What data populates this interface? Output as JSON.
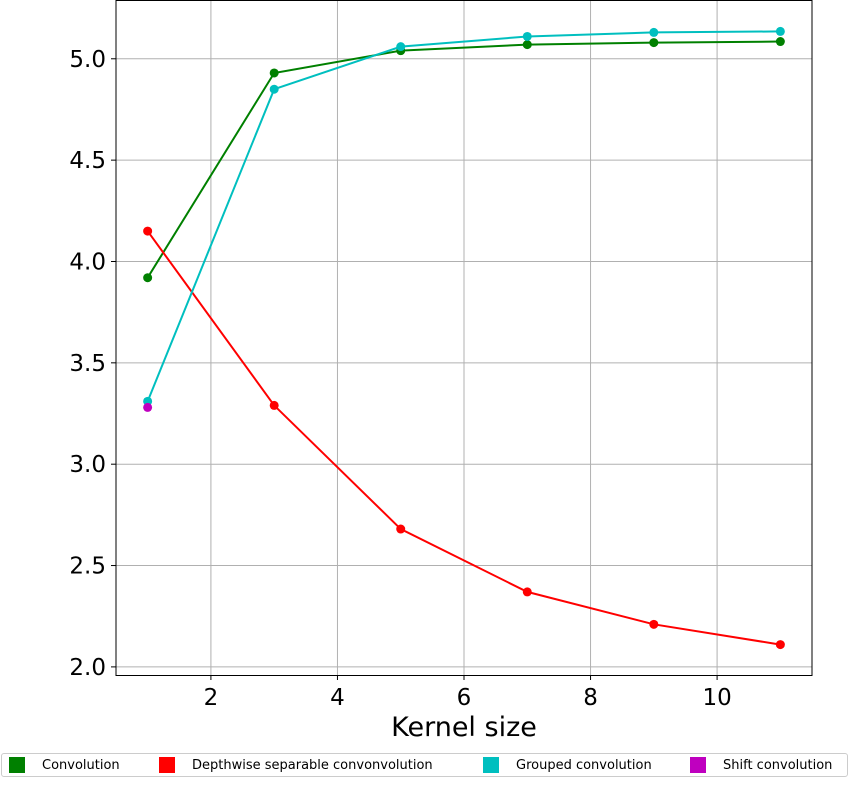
{
  "chart_data": {
    "type": "line",
    "xlabel": "Kernel size",
    "ylabel": "",
    "xlim": [
      0.5,
      11.5
    ],
    "ylim": [
      1.96,
      5.29
    ],
    "xticks": [
      2,
      4,
      6,
      8,
      10
    ],
    "yticks": [
      2.0,
      2.5,
      3.0,
      3.5,
      4.0,
      4.5,
      5.0
    ],
    "xtick_labels": [
      "2",
      "4",
      "6",
      "8",
      "10"
    ],
    "ytick_labels": [
      "2.0",
      "2.5",
      "3.0",
      "3.5",
      "4.0",
      "4.5",
      "5.0"
    ],
    "grid": true,
    "legend_position": "bottom",
    "series": [
      {
        "name": "Convolution",
        "color": "#008000",
        "x": [
          1,
          3,
          5,
          7,
          9,
          11
        ],
        "y": [
          3.92,
          4.93,
          5.04,
          5.07,
          5.08,
          5.085
        ]
      },
      {
        "name": "Depthwise separable convonvolution",
        "color": "#ff0000",
        "x": [
          1,
          3,
          5,
          7,
          9,
          11
        ],
        "y": [
          4.15,
          3.29,
          2.68,
          2.37,
          2.21,
          2.11
        ]
      },
      {
        "name": "Grouped convolution",
        "color": "#00bfbf",
        "x": [
          1,
          3,
          5,
          7,
          9,
          11
        ],
        "y": [
          3.31,
          4.85,
          5.06,
          5.11,
          5.13,
          5.135
        ]
      },
      {
        "name": "Shift convolution",
        "color": "#bf00bf",
        "x": [
          1
        ],
        "y": [
          3.28
        ]
      }
    ]
  }
}
